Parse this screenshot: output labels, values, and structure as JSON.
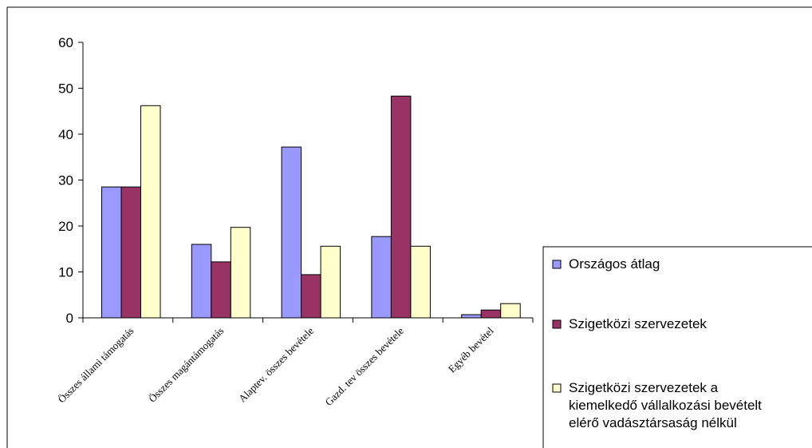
{
  "chart_data": {
    "type": "bar",
    "categories": [
      "Összes állami támogatás",
      "Összes magántámogatás",
      "Alaptev. összes bevétele",
      "Gazd. tev összes bevétele",
      "Egyéb bevétel"
    ],
    "series": [
      {
        "name": "Országos átlag",
        "color": "#9999ff",
        "values": [
          28.5,
          16,
          37.2,
          17.7,
          0.7
        ]
      },
      {
        "name": "Szigetközi szervezetek",
        "color": "#993366",
        "values": [
          28.5,
          12.2,
          9.4,
          48.3,
          1.7
        ]
      },
      {
        "name": "Szigetközi szervezetek a kiemelkedő vállalkozási bevételt elérő vadásztársaság nélkül",
        "legend_lines": [
          "Szigetközi szervezetek a",
          "kiemelkedő vállalkozási bevételt",
          "elérő vadásztársaság nélkül"
        ],
        "color": "#ffffcc",
        "values": [
          46.2,
          19.7,
          15.6,
          15.6,
          3.1
        ]
      }
    ],
    "ylim": [
      0,
      60
    ],
    "yticks": [
      0,
      10,
      20,
      30,
      40,
      50,
      60
    ],
    "grid": false,
    "legend_position": "right",
    "title": "",
    "xlabel": "",
    "ylabel": ""
  }
}
